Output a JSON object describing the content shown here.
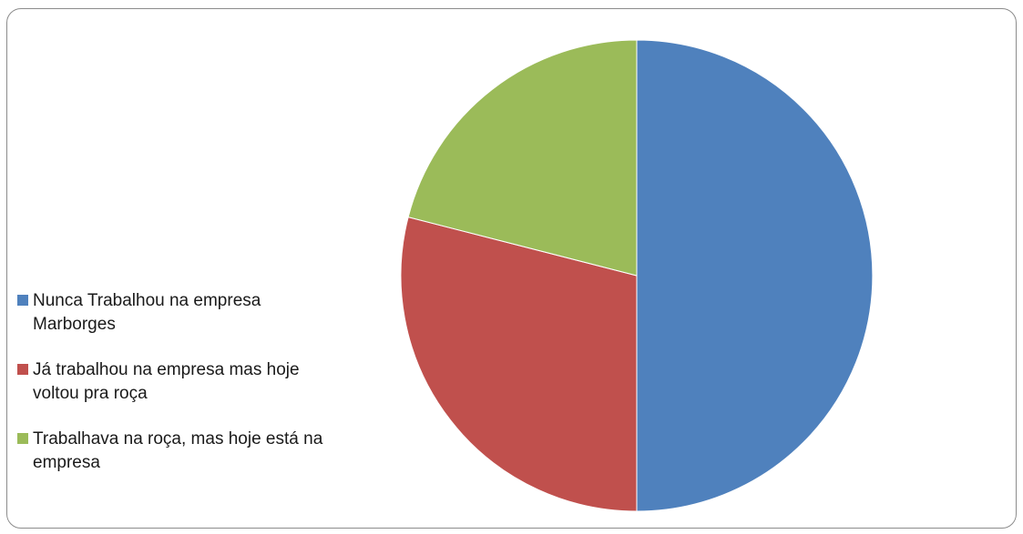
{
  "chart_data": {
    "type": "pie",
    "title": "",
    "start_angle": "top",
    "direction": "clockwise",
    "legend_position": "left",
    "slices": [
      {
        "label": "Nunca Trabalhou na empresa Marborges",
        "value": 50,
        "color": "#4f81bd"
      },
      {
        "label": "Já trabalhou na empresa mas hoje voltou pra roça",
        "value": 29,
        "color": "#c0504d"
      },
      {
        "label": "Trabalhava na roça, mas hoje está na empresa",
        "value": 21,
        "color": "#9bbb59"
      }
    ]
  }
}
